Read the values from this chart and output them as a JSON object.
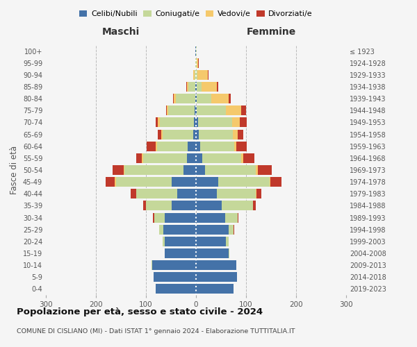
{
  "age_groups": [
    "0-4",
    "5-9",
    "10-14",
    "15-19",
    "20-24",
    "25-29",
    "30-34",
    "35-39",
    "40-44",
    "45-49",
    "50-54",
    "55-59",
    "60-64",
    "65-69",
    "70-74",
    "75-79",
    "80-84",
    "85-89",
    "90-94",
    "95-99",
    "100+"
  ],
  "birth_years": [
    "2019-2023",
    "2014-2018",
    "2009-2013",
    "2004-2008",
    "1999-2003",
    "1994-1998",
    "1989-1993",
    "1984-1988",
    "1979-1983",
    "1974-1978",
    "1969-1973",
    "1964-1968",
    "1959-1963",
    "1954-1958",
    "1949-1953",
    "1944-1948",
    "1939-1943",
    "1934-1938",
    "1929-1933",
    "1924-1928",
    "≤ 1923"
  ],
  "males": {
    "celibi": [
      80,
      85,
      88,
      62,
      62,
      65,
      62,
      48,
      38,
      48,
      25,
      18,
      16,
      5,
      4,
      3,
      2,
      1,
      0,
      0,
      1
    ],
    "coniugati": [
      0,
      0,
      1,
      1,
      4,
      8,
      22,
      52,
      82,
      112,
      118,
      88,
      62,
      62,
      68,
      52,
      38,
      14,
      3,
      1,
      1
    ],
    "vedovi": [
      0,
      0,
      0,
      0,
      0,
      0,
      0,
      0,
      0,
      2,
      2,
      2,
      2,
      2,
      4,
      3,
      4,
      3,
      3,
      0,
      0
    ],
    "divorziati": [
      0,
      0,
      0,
      0,
      0,
      0,
      2,
      5,
      10,
      18,
      22,
      12,
      18,
      8,
      5,
      2,
      2,
      2,
      0,
      0,
      0
    ]
  },
  "females": {
    "nubili": [
      75,
      82,
      80,
      65,
      60,
      65,
      58,
      52,
      42,
      45,
      18,
      12,
      8,
      5,
      4,
      2,
      2,
      1,
      0,
      0,
      0
    ],
    "coniugate": [
      0,
      0,
      1,
      2,
      5,
      10,
      25,
      62,
      78,
      102,
      102,
      78,
      68,
      68,
      68,
      58,
      28,
      10,
      3,
      1,
      1
    ],
    "vedove": [
      0,
      0,
      0,
      0,
      0,
      0,
      0,
      0,
      1,
      2,
      3,
      5,
      5,
      10,
      15,
      30,
      35,
      30,
      20,
      3,
      1
    ],
    "divorziate": [
      0,
      0,
      0,
      0,
      0,
      1,
      2,
      6,
      10,
      22,
      28,
      22,
      20,
      12,
      15,
      10,
      5,
      4,
      2,
      2,
      0
    ]
  },
  "colors": {
    "celibi": "#4472a8",
    "coniugati": "#c5d89a",
    "vedovi": "#f5c96c",
    "divorziati": "#c0392b"
  },
  "title": "Popolazione per età, sesso e stato civile - 2024",
  "subtitle": "COMUNE DI CISLIANO (MI) - Dati ISTAT 1° gennaio 2024 - Elaborazione TUTTITALIA.IT",
  "xlabel_left": "Maschi",
  "xlabel_right": "Femmine",
  "ylabel_left": "Fasce di età",
  "xlim": 300,
  "background_color": "#f5f5f5",
  "grid_color": "#bbbbbb"
}
